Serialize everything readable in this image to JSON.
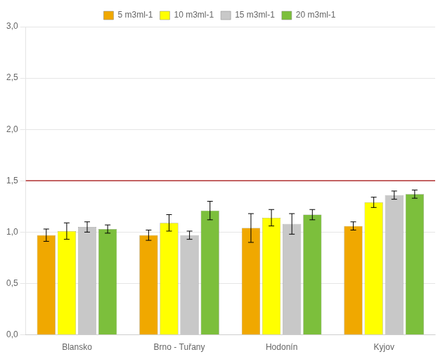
{
  "chart_data": {
    "type": "bar",
    "categories": [
      "Blansko",
      "Brno - Tuřany",
      "Hodonín",
      "Kyjov"
    ],
    "series": [
      {
        "name": "5 m3ml-1",
        "color": "#F0A800",
        "values": [
          0.97,
          0.97,
          1.04,
          1.06
        ],
        "errors": [
          0.06,
          0.05,
          0.14,
          0.04
        ]
      },
      {
        "name": "10 m3ml-1",
        "color": "#FFFF00",
        "values": [
          1.01,
          1.09,
          1.14,
          1.29
        ],
        "errors": [
          0.08,
          0.08,
          0.08,
          0.05
        ]
      },
      {
        "name": "15 m3ml-1",
        "color": "#C8C8C8",
        "values": [
          1.05,
          0.97,
          1.08,
          1.36
        ],
        "errors": [
          0.05,
          0.04,
          0.1,
          0.04
        ]
      },
      {
        "name": "20 m3ml-1",
        "color": "#7CBF3C",
        "values": [
          1.03,
          1.21,
          1.17,
          1.37
        ],
        "errors": [
          0.04,
          0.09,
          0.05,
          0.04
        ]
      }
    ],
    "hline": {
      "y": 1.5,
      "color": "#B03030"
    },
    "ylim": [
      0,
      3.0
    ],
    "yticks": [
      {
        "value": 0.0,
        "label": "0,0"
      },
      {
        "value": 0.5,
        "label": "0,5"
      },
      {
        "value": 1.0,
        "label": "1,0"
      },
      {
        "value": 1.5,
        "label": "1,5"
      },
      {
        "value": 2.0,
        "label": "2,0"
      },
      {
        "value": 2.5,
        "label": "2,5"
      },
      {
        "value": 3.0,
        "label": "3,0"
      }
    ],
    "grid": true,
    "legend": "top"
  }
}
